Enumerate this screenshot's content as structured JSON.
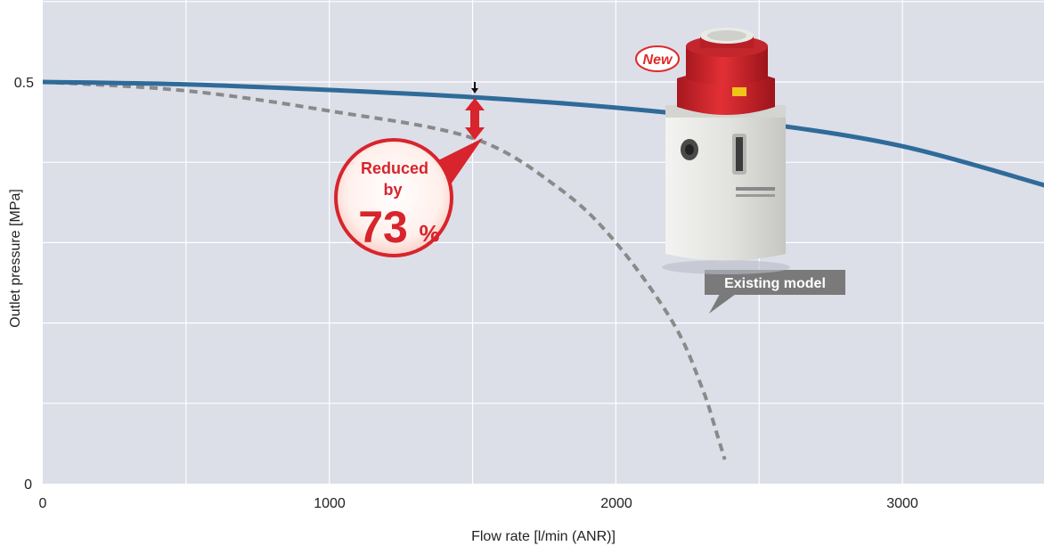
{
  "chart_data": {
    "type": "line",
    "title": "",
    "xlabel": "Flow rate [l/min (ANR)]",
    "ylabel": "Outlet pressure [MPa]",
    "xlim": [
      0,
      3500
    ],
    "ylim": [
      0,
      0.5
    ],
    "x_ticks": [
      "0",
      "1000",
      "2000",
      "3000"
    ],
    "y_ticks": [
      "0",
      "0.5"
    ],
    "grid": true,
    "series": [
      {
        "name": "",
        "style": "solid",
        "color": "#2f6b99",
        "x": [
          0,
          500,
          1000,
          1500,
          2000,
          2500,
          3000,
          3500
        ],
        "y": [
          0.5,
          0.497,
          0.49,
          0.481,
          0.468,
          0.449,
          0.42,
          0.371
        ]
      },
      {
        "name": "Existing model",
        "style": "dashed",
        "color": "#8a8a8a",
        "x": [
          0,
          500,
          1000,
          1500,
          1800,
          2000,
          2200,
          2300,
          2350,
          2380
        ],
        "y": [
          0.5,
          0.489,
          0.464,
          0.43,
          0.368,
          0.3,
          0.2,
          0.12,
          0.065,
          0.03
        ]
      }
    ],
    "annotations": {
      "badge_line1": "Reduced",
      "badge_line2": "by",
      "badge_number": "73",
      "badge_unit": "%",
      "existing_label": "Existing model",
      "new_label": "New"
    }
  },
  "colors": {
    "plot_bg": "#dcdee8",
    "grid": "#ffffff",
    "accent_red": "#d8242c"
  },
  "icons": {
    "product": "regulator-product-image",
    "arrow": "double-headed-red-arrow",
    "marker": "down-arrow-marker"
  }
}
